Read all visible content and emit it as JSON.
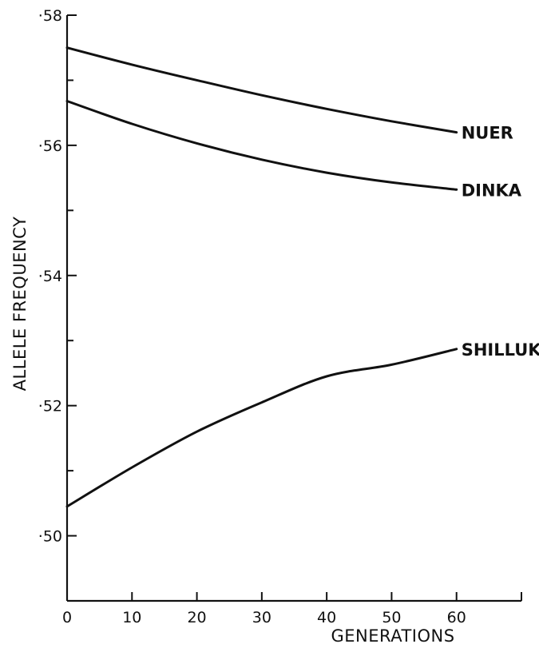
{
  "chart_data": {
    "type": "line",
    "title": "",
    "xlabel": "GENERATIONS",
    "ylabel": "ALLELE FREQUENCY",
    "xlim": [
      0,
      70
    ],
    "ylim": [
      0.49,
      0.58
    ],
    "x_ticks": [
      0,
      10,
      20,
      30,
      40,
      50,
      60
    ],
    "x_tick_labels": [
      "0",
      "10",
      "20",
      "30",
      "40",
      "50",
      "60"
    ],
    "y_ticks": [
      0.5,
      0.52,
      0.54,
      0.56,
      0.58
    ],
    "y_tick_labels": [
      "·50",
      "·52",
      "·54",
      "·56",
      "·58"
    ],
    "y_minor_ticks": [
      0.51,
      0.53,
      0.55,
      0.57
    ],
    "grid": false,
    "series": [
      {
        "name": "NUER",
        "x": [
          0,
          10,
          20,
          30,
          40,
          50,
          60
        ],
        "y": [
          0.575,
          0.5724,
          0.57,
          0.5677,
          0.5656,
          0.5637,
          0.562
        ]
      },
      {
        "name": "DINKA",
        "x": [
          0,
          10,
          20,
          30,
          40,
          50,
          60
        ],
        "y": [
          0.5668,
          0.5633,
          0.5603,
          0.5578,
          0.5558,
          0.5543,
          0.5532
        ]
      },
      {
        "name": "SHILLUK",
        "x": [
          0,
          10,
          20,
          30,
          40,
          50,
          60
        ],
        "y": [
          0.5045,
          0.5105,
          0.516,
          0.5205,
          0.5245,
          0.5263,
          0.5287
        ]
      }
    ]
  }
}
